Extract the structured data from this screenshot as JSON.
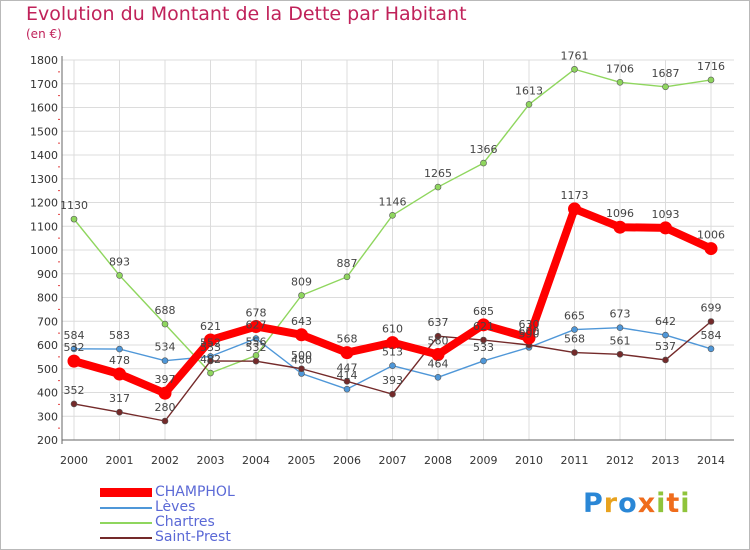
{
  "title": "Evolution du Montant de la Dette par Habitant",
  "unit": "(en €)",
  "logo": {
    "text": "Proxiti",
    "colors": [
      "#2a87d6",
      "#e8a21e",
      "#2a87d6",
      "#ef6c1c",
      "#8fc43b",
      "#ef6c1c",
      "#8fc43b"
    ]
  },
  "chart_data": {
    "type": "line",
    "title": "Evolution du Montant de la Dette par Habitant",
    "ylabel": "(en €)",
    "xlabel": "",
    "x": [
      "2000",
      "2001",
      "2002",
      "2003",
      "2004",
      "2005",
      "2006",
      "2007",
      "2008",
      "2009",
      "2010",
      "2011",
      "2012",
      "2013",
      "2014"
    ],
    "ylim": [
      200,
      1800
    ],
    "yticks": [
      200,
      300,
      400,
      500,
      600,
      700,
      800,
      900,
      1000,
      1100,
      1200,
      1300,
      1400,
      1500,
      1600,
      1700,
      1800
    ],
    "grid": true,
    "legend_position": "bottom-left",
    "series": [
      {
        "name": "CHAMPHOL",
        "color": "#ff0000",
        "values": [
          532,
          478,
          397,
          621,
          678,
          643,
          568,
          610,
          560,
          685,
          630,
          1173,
          1096,
          1093,
          1006
        ]
      },
      {
        "name": "Lèves",
        "color": "#4f97d8",
        "values": [
          584,
          583,
          534,
          552,
          627,
          480,
          414,
          513,
          464,
          533,
          590,
          665,
          673,
          642,
          584
        ]
      },
      {
        "name": "Chartres",
        "color": "#8fd65e",
        "values": [
          1130,
          893,
          688,
          482,
          556,
          809,
          887,
          1146,
          1265,
          1366,
          1613,
          1761,
          1706,
          1687,
          1716
        ]
      },
      {
        "name": "Saint-Prest",
        "color": "#742a2a",
        "values": [
          352,
          317,
          280,
          533,
          532,
          500,
          447,
          393,
          637,
          621,
          600,
          568,
          561,
          537,
          699
        ]
      }
    ]
  }
}
